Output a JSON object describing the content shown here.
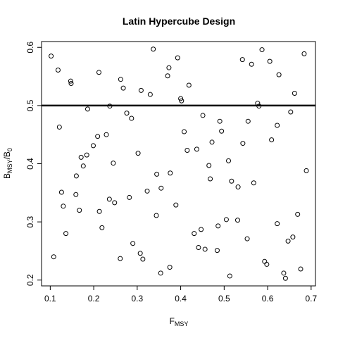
{
  "chart_data": {
    "type": "scatter",
    "title": "Latin Hypercube Design",
    "xlabel": {
      "main": "F",
      "sub": "MSY"
    },
    "ylabel": {
      "main": "B",
      "sub": "MSY",
      "sep": "/B",
      "sub2": "0"
    },
    "xlim": [
      0.08,
      0.71
    ],
    "ylim": [
      0.19,
      0.61
    ],
    "xticks": [
      "0.1",
      "0.2",
      "0.3",
      "0.4",
      "0.5",
      "0.6",
      "0.7"
    ],
    "yticks": [
      "0.2",
      "0.3",
      "0.4",
      "0.5",
      "0.6"
    ],
    "reference_line": {
      "orientation": "horizontal",
      "y": 0.5,
      "color": "#000000"
    },
    "marker": "open-circle",
    "points": [
      [
        0.102,
        0.585
      ],
      [
        0.118,
        0.561
      ],
      [
        0.147,
        0.542
      ],
      [
        0.148,
        0.538
      ],
      [
        0.212,
        0.557
      ],
      [
        0.262,
        0.545
      ],
      [
        0.268,
        0.53
      ],
      [
        0.309,
        0.526
      ],
      [
        0.33,
        0.519
      ],
      [
        0.337,
        0.597
      ],
      [
        0.37,
        0.551
      ],
      [
        0.373,
        0.565
      ],
      [
        0.393,
        0.582
      ],
      [
        0.4,
        0.512
      ],
      [
        0.402,
        0.508
      ],
      [
        0.419,
        0.535
      ],
      [
        0.542,
        0.579
      ],
      [
        0.563,
        0.571
      ],
      [
        0.587,
        0.596
      ],
      [
        0.605,
        0.576
      ],
      [
        0.626,
        0.553
      ],
      [
        0.662,
        0.521
      ],
      [
        0.684,
        0.589
      ],
      [
        0.577,
        0.504
      ],
      [
        0.58,
        0.499
      ],
      [
        0.186,
        0.494
      ],
      [
        0.237,
        0.499
      ],
      [
        0.276,
        0.487
      ],
      [
        0.287,
        0.478
      ],
      [
        0.121,
        0.463
      ],
      [
        0.451,
        0.483
      ],
      [
        0.49,
        0.473
      ],
      [
        0.494,
        0.456
      ],
      [
        0.555,
        0.473
      ],
      [
        0.622,
        0.466
      ],
      [
        0.653,
        0.489
      ],
      [
        0.408,
        0.455
      ],
      [
        0.209,
        0.447
      ],
      [
        0.229,
        0.45
      ],
      [
        0.199,
        0.431
      ],
      [
        0.171,
        0.411
      ],
      [
        0.184,
        0.415
      ],
      [
        0.176,
        0.396
      ],
      [
        0.245,
        0.401
      ],
      [
        0.302,
        0.418
      ],
      [
        0.415,
        0.423
      ],
      [
        0.437,
        0.425
      ],
      [
        0.472,
        0.437
      ],
      [
        0.543,
        0.435
      ],
      [
        0.609,
        0.441
      ],
      [
        0.51,
        0.405
      ],
      [
        0.465,
        0.397
      ],
      [
        0.16,
        0.379
      ],
      [
        0.345,
        0.382
      ],
      [
        0.376,
        0.384
      ],
      [
        0.468,
        0.374
      ],
      [
        0.517,
        0.37
      ],
      [
        0.568,
        0.367
      ],
      [
        0.689,
        0.388
      ],
      [
        0.126,
        0.351
      ],
      [
        0.159,
        0.347
      ],
      [
        0.13,
        0.327
      ],
      [
        0.167,
        0.32
      ],
      [
        0.236,
        0.339
      ],
      [
        0.248,
        0.333
      ],
      [
        0.282,
        0.342
      ],
      [
        0.323,
        0.353
      ],
      [
        0.355,
        0.358
      ],
      [
        0.532,
        0.36
      ],
      [
        0.213,
        0.318
      ],
      [
        0.344,
        0.311
      ],
      [
        0.389,
        0.329
      ],
      [
        0.219,
        0.29
      ],
      [
        0.136,
        0.28
      ],
      [
        0.431,
        0.28
      ],
      [
        0.447,
        0.287
      ],
      [
        0.486,
        0.293
      ],
      [
        0.505,
        0.304
      ],
      [
        0.531,
        0.303
      ],
      [
        0.622,
        0.297
      ],
      [
        0.669,
        0.313
      ],
      [
        0.108,
        0.24
      ],
      [
        0.261,
        0.237
      ],
      [
        0.29,
        0.263
      ],
      [
        0.307,
        0.246
      ],
      [
        0.313,
        0.236
      ],
      [
        0.375,
        0.222
      ],
      [
        0.354,
        0.212
      ],
      [
        0.441,
        0.256
      ],
      [
        0.456,
        0.253
      ],
      [
        0.484,
        0.251
      ],
      [
        0.553,
        0.271
      ],
      [
        0.593,
        0.232
      ],
      [
        0.598,
        0.227
      ],
      [
        0.658,
        0.274
      ],
      [
        0.647,
        0.267
      ],
      [
        0.513,
        0.207
      ],
      [
        0.637,
        0.212
      ],
      [
        0.641,
        0.203
      ],
      [
        0.676,
        0.219
      ]
    ]
  }
}
